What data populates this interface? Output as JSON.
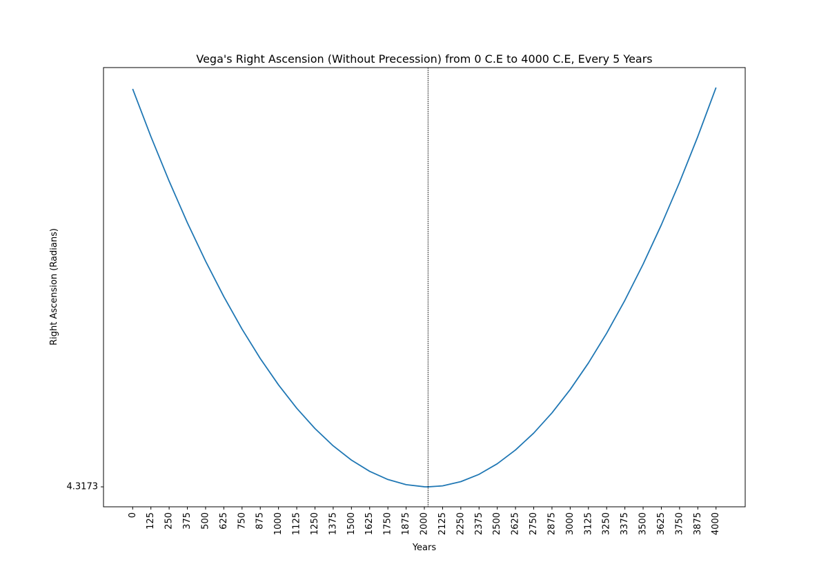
{
  "chart_data": {
    "type": "line",
    "title": "Vega's Right Ascension (Without Precession) from 0 C.E to 4000 C.E, Every 5 Years",
    "xlabel": "Years",
    "ylabel": "Right Ascension (Radians)",
    "x": [
      0,
      125,
      250,
      375,
      500,
      625,
      750,
      875,
      1000,
      1125,
      1250,
      1375,
      1500,
      1625,
      1750,
      1875,
      2000,
      2025,
      2125,
      2250,
      2375,
      2500,
      2625,
      2750,
      2875,
      3000,
      3125,
      3250,
      3375,
      3500,
      3625,
      3750,
      3875,
      4000
    ],
    "values": [
      4.9152,
      4.8436,
      4.7767,
      4.7142,
      4.6564,
      4.6031,
      4.5543,
      4.5101,
      4.4705,
      4.4354,
      4.4049,
      4.3789,
      4.3575,
      4.3406,
      4.3283,
      4.3206,
      4.3174,
      4.3173,
      4.3188,
      4.3251,
      4.3361,
      4.352,
      4.3727,
      4.3981,
      4.4284,
      4.4635,
      4.5034,
      4.5481,
      4.5976,
      4.6519,
      4.711,
      4.775,
      4.8437,
      4.9173
    ],
    "color": "#1f77b4",
    "vline": 2025,
    "xlim": [
      -200,
      4200
    ],
    "xticks": [
      0,
      125,
      250,
      375,
      500,
      625,
      750,
      875,
      1000,
      1125,
      1250,
      1375,
      1500,
      1625,
      1750,
      1875,
      2000,
      2125,
      2250,
      2375,
      2500,
      2625,
      2750,
      2875,
      3000,
      3125,
      3250,
      3375,
      3500,
      3625,
      3750,
      3875,
      4000
    ],
    "ylim": [
      4.2873,
      4.9473
    ],
    "yticks": [
      4.3173
    ],
    "grid": false
  }
}
